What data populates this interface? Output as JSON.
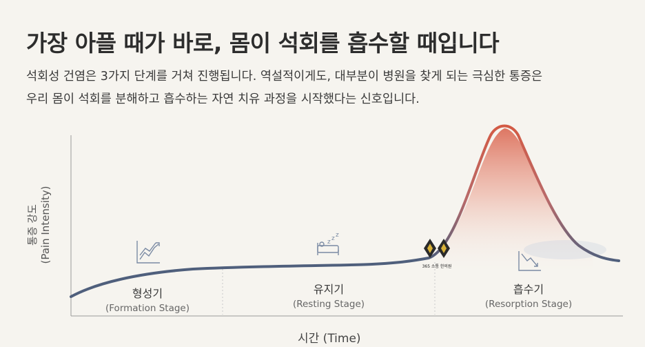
{
  "title": "가장 아플 때가 바로, 몸이 석회를 흡수할 때입니다",
  "subtitle_line1": "석회성 건염은 3가지 단계를 거쳐 진행됩니다. 역설적이게도, 대부분이 병원을 찾게 되는 극심한 통증은",
  "subtitle_line2": "우리 몸이 석회를 분해하고 흡수하는 자연 치유 과정을 시작했다는 신호입니다.",
  "chart": {
    "ylabel_ko": "통증 강도",
    "ylabel_en": "(Pain Intensity)",
    "xlabel": "시간 (Time)",
    "stages": [
      {
        "ko": "형성기",
        "en": "(Formation Stage)",
        "icon": "rising-chart-icon"
      },
      {
        "ko": "유지기",
        "en": "(Resting Stage)",
        "icon": "sleeping-bed-icon"
      },
      {
        "ko": "흡수기",
        "en": "(Resorption Stage)",
        "icon": "falling-chart-icon"
      }
    ],
    "curve_color": "#4f5f7c",
    "peak_color": "#d9604a"
  },
  "logo_text": "365 소통 한의원"
}
